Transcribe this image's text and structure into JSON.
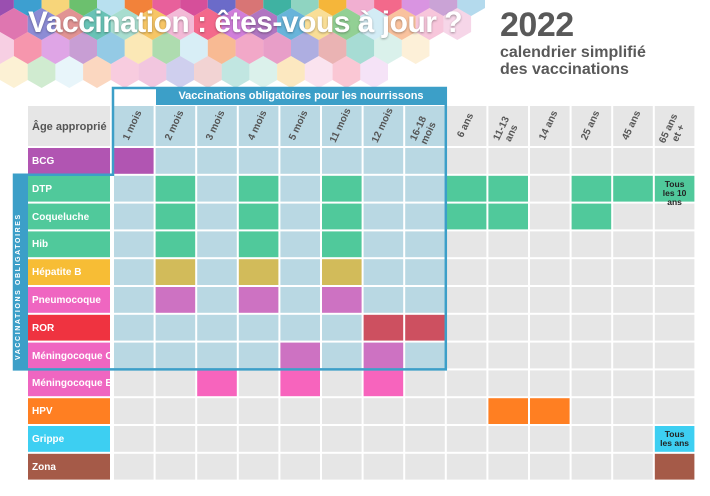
{
  "header": {
    "title": "Vaccination : êtes-vous à jour ?",
    "year": "2022",
    "subtitle_line1": "calendrier simplifié",
    "subtitle_line2": "des vaccinations"
  },
  "mandatory_band_label": "Vaccinations obligatoires pour les nourrissons",
  "side_label": "VACCINATIONS OBLIGATOIRES",
  "colors": {
    "mandatory_band": "#3c9fc8",
    "mandatory_fill": "#b9d8e3",
    "empty_cell": "#e6e6e6"
  },
  "chart_data": {
    "type": "table",
    "age_header": "Âge approprié",
    "columns": [
      [
        "1 mois"
      ],
      [
        "2 mois"
      ],
      [
        "3 mois"
      ],
      [
        "4 mois"
      ],
      [
        "5 mois"
      ],
      [
        "11 mois"
      ],
      [
        "12 mois"
      ],
      [
        "16-18",
        "mois"
      ],
      [
        "6 ans"
      ],
      [
        "11-13",
        "ans"
      ],
      [
        "14 ans"
      ],
      [
        "25 ans"
      ],
      [
        "45 ans"
      ],
      [
        "65 ans",
        "et +"
      ]
    ],
    "rows": [
      {
        "name": "BCG",
        "color": "#b155b2",
        "doses": [
          0
        ]
      },
      {
        "name": "DTP",
        "color": "#50c99b",
        "doses": [
          1,
          3,
          5,
          8,
          9,
          11,
          12,
          13
        ]
      },
      {
        "name": "Coqueluche",
        "color": "#50c99b",
        "doses": [
          1,
          3,
          5,
          8,
          9,
          11
        ]
      },
      {
        "name": "Hib",
        "color": "#50c99b",
        "doses": [
          1,
          3,
          5
        ]
      },
      {
        "name": "Hépatite B",
        "color": "#f7bd35",
        "cell_color": "#d2bb5a",
        "doses": [
          1,
          3,
          5
        ]
      },
      {
        "name": "Pneumocoque",
        "color": "#ef66c1",
        "cell_color": "#cd72c2",
        "doses": [
          1,
          3,
          5
        ]
      },
      {
        "name": "ROR",
        "color": "#ef3340",
        "cell_color": "#cd5060",
        "doses": [
          6,
          7
        ]
      },
      {
        "name": "Méningocoque C",
        "color": "#ef66c1",
        "cell_color": "#cd72c2",
        "doses": [
          4,
          6
        ]
      },
      {
        "name": "Méningocoque B",
        "color": "#ef66c1",
        "cell_color": "#f764bd",
        "doses": [
          2,
          4,
          6
        ]
      },
      {
        "name": "HPV",
        "color": "#ff7f22",
        "doses": [
          9,
          10
        ]
      },
      {
        "name": "Grippe",
        "color": "#3dcff2",
        "doses": [
          13
        ]
      },
      {
        "name": "Zona",
        "color": "#a55a48",
        "doses": [
          13
        ]
      }
    ],
    "mandatory_rows": [
      "DTP",
      "Coqueluche",
      "Hib",
      "Hépatite B",
      "Pneumocoque",
      "ROR",
      "Méningocoque C"
    ],
    "mandatory_columns": [
      "1 mois",
      "2 mois",
      "3 mois",
      "4 mois",
      "5 mois",
      "11 mois",
      "12 mois",
      "16-18 mois"
    ],
    "annotations": [
      {
        "row": "DTP",
        "column": "65 ans et +",
        "lines": [
          "Tous",
          "les 10 ans"
        ]
      },
      {
        "row": "Grippe",
        "column": "65 ans et +",
        "lines": [
          "Tous",
          "les ans"
        ]
      }
    ]
  }
}
